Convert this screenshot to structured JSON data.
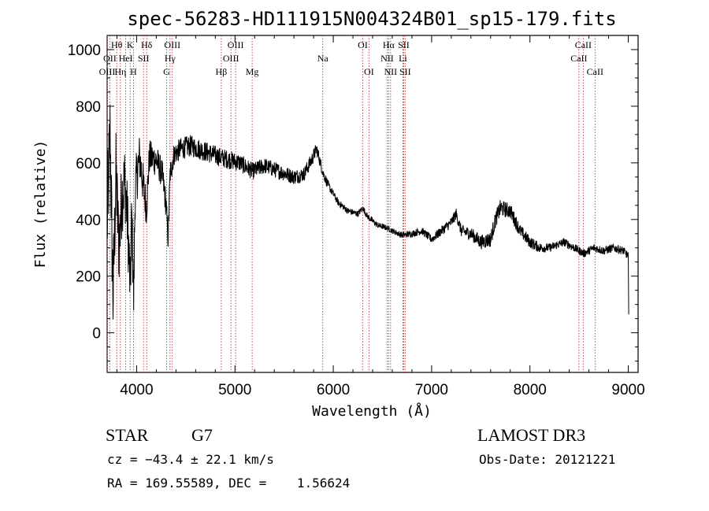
{
  "chart_data": {
    "type": "line",
    "title": "spec-56283-HD111915N004324B01_sp15-179.fits",
    "xlabel": "Wavelength (Å)",
    "ylabel": "Flux (relative)",
    "xlim": [
      3700,
      9100
    ],
    "ylim": [
      -140,
      1050
    ],
    "xticks": [
      4000,
      5000,
      6000,
      7000,
      8000,
      9000
    ],
    "yticks": [
      0,
      200,
      400,
      600,
      800,
      1000
    ],
    "series": [
      {
        "name": "flux",
        "anchors": [
          [
            3700,
            380
          ],
          [
            3730,
            700
          ],
          [
            3760,
            120
          ],
          [
            3790,
            560
          ],
          [
            3820,
            300
          ],
          [
            3850,
            480
          ],
          [
            3880,
            540
          ],
          [
            3910,
            380
          ],
          [
            3935,
            150
          ],
          [
            3950,
            420
          ],
          [
            3970,
            120
          ],
          [
            3985,
            500
          ],
          [
            4005,
            560
          ],
          [
            4030,
            620
          ],
          [
            4060,
            540
          ],
          [
            4100,
            440
          ],
          [
            4130,
            620
          ],
          [
            4200,
            610
          ],
          [
            4260,
            560
          ],
          [
            4300,
            450
          ],
          [
            4320,
            330
          ],
          [
            4340,
            560
          ],
          [
            4380,
            630
          ],
          [
            4450,
            650
          ],
          [
            4550,
            660
          ],
          [
            4700,
            640
          ],
          [
            4850,
            620
          ],
          [
            4950,
            610
          ],
          [
            5050,
            600
          ],
          [
            5180,
            570
          ],
          [
            5300,
            590
          ],
          [
            5450,
            570
          ],
          [
            5600,
            550
          ],
          [
            5700,
            560
          ],
          [
            5780,
            610
          ],
          [
            5830,
            650
          ],
          [
            5900,
            560
          ],
          [
            5950,
            520
          ],
          [
            6050,
            460
          ],
          [
            6150,
            430
          ],
          [
            6250,
            420
          ],
          [
            6300,
            440
          ],
          [
            6350,
            410
          ],
          [
            6450,
            380
          ],
          [
            6550,
            370
          ],
          [
            6600,
            360
          ],
          [
            6700,
            345
          ],
          [
            6800,
            350
          ],
          [
            6900,
            360
          ],
          [
            7000,
            330
          ],
          [
            7100,
            360
          ],
          [
            7200,
            390
          ],
          [
            7250,
            420
          ],
          [
            7300,
            360
          ],
          [
            7400,
            350
          ],
          [
            7500,
            320
          ],
          [
            7600,
            330
          ],
          [
            7650,
            400
          ],
          [
            7700,
            440
          ],
          [
            7800,
            430
          ],
          [
            7900,
            360
          ],
          [
            8000,
            320
          ],
          [
            8100,
            300
          ],
          [
            8200,
            300
          ],
          [
            8350,
            320
          ],
          [
            8450,
            300
          ],
          [
            8550,
            280
          ],
          [
            8650,
            300
          ],
          [
            8750,
            290
          ],
          [
            8850,
            300
          ],
          [
            8950,
            290
          ],
          [
            9000,
            270
          ],
          [
            9005,
            50
          ]
        ],
        "noise_amplitude": [
          [
            3700,
            380
          ],
          [
            3800,
            300
          ],
          [
            3900,
            260
          ],
          [
            3990,
            200
          ],
          [
            4100,
            130
          ],
          [
            4400,
            80
          ],
          [
            4800,
            70
          ],
          [
            5200,
            60
          ],
          [
            5800,
            50
          ],
          [
            6000,
            25
          ],
          [
            6600,
            20
          ],
          [
            7000,
            30
          ],
          [
            7700,
            60
          ],
          [
            8200,
            30
          ],
          [
            9000,
            30
          ]
        ]
      }
    ],
    "spectral_lines": [
      {
        "label": "Hθ",
        "wl": 3798,
        "row": 0
      },
      {
        "label": "OII",
        "wl": 3727,
        "row": 1
      },
      {
        "label": "HeI",
        "wl": 3889,
        "row": 1
      },
      {
        "label": "OIII",
        "wl": 3700,
        "row": 2
      },
      {
        "label": "Hη",
        "wl": 3835,
        "row": 2
      },
      {
        "label": "K",
        "wl": 3934,
        "row": 0
      },
      {
        "label": "Hδ",
        "wl": 4102,
        "row": 0
      },
      {
        "label": "SII",
        "wl": 4070,
        "row": 1
      },
      {
        "label": "H",
        "wl": 3968,
        "row": 2
      },
      {
        "label": "OIII",
        "wl": 4363,
        "row": 0
      },
      {
        "label": "Hγ",
        "wl": 4340,
        "row": 1
      },
      {
        "label": "G",
        "wl": 4305,
        "row": 2
      },
      {
        "label": "Hβ",
        "wl": 4861,
        "row": 2
      },
      {
        "label": "OIII",
        "wl": 5007,
        "row": 0
      },
      {
        "label": "OIII",
        "wl": 4959,
        "row": 1
      },
      {
        "label": "Mg",
        "wl": 5175,
        "row": 2
      },
      {
        "label": "Na",
        "wl": 5893,
        "row": 1
      },
      {
        "label": "OI",
        "wl": 6300,
        "row": 0
      },
      {
        "label": "OI",
        "wl": 6363,
        "row": 2
      },
      {
        "label": "Hα",
        "wl": 6563,
        "row": 0
      },
      {
        "label": "SII",
        "wl": 6716,
        "row": 0
      },
      {
        "label": "NII",
        "wl": 6548,
        "row": 1
      },
      {
        "label": "Li",
        "wl": 6708,
        "row": 1
      },
      {
        "label": "NII",
        "wl": 6583,
        "row": 2
      },
      {
        "label": "SII",
        "wl": 6731,
        "row": 2
      },
      {
        "label": "CaII",
        "wl": 8542,
        "row": 0
      },
      {
        "label": "CaII",
        "wl": 8498,
        "row": 1
      },
      {
        "label": "CaII",
        "wl": 8662,
        "row": 2
      }
    ]
  },
  "info": {
    "class": "STAR",
    "subclass": "G7",
    "survey": "LAMOST DR3",
    "cz": "cz = −43.4 ± 22.1 km/s",
    "obs_date": "Obs-Date: 20121221",
    "coords": "RA = 169.55589, DEC =    1.56624"
  }
}
